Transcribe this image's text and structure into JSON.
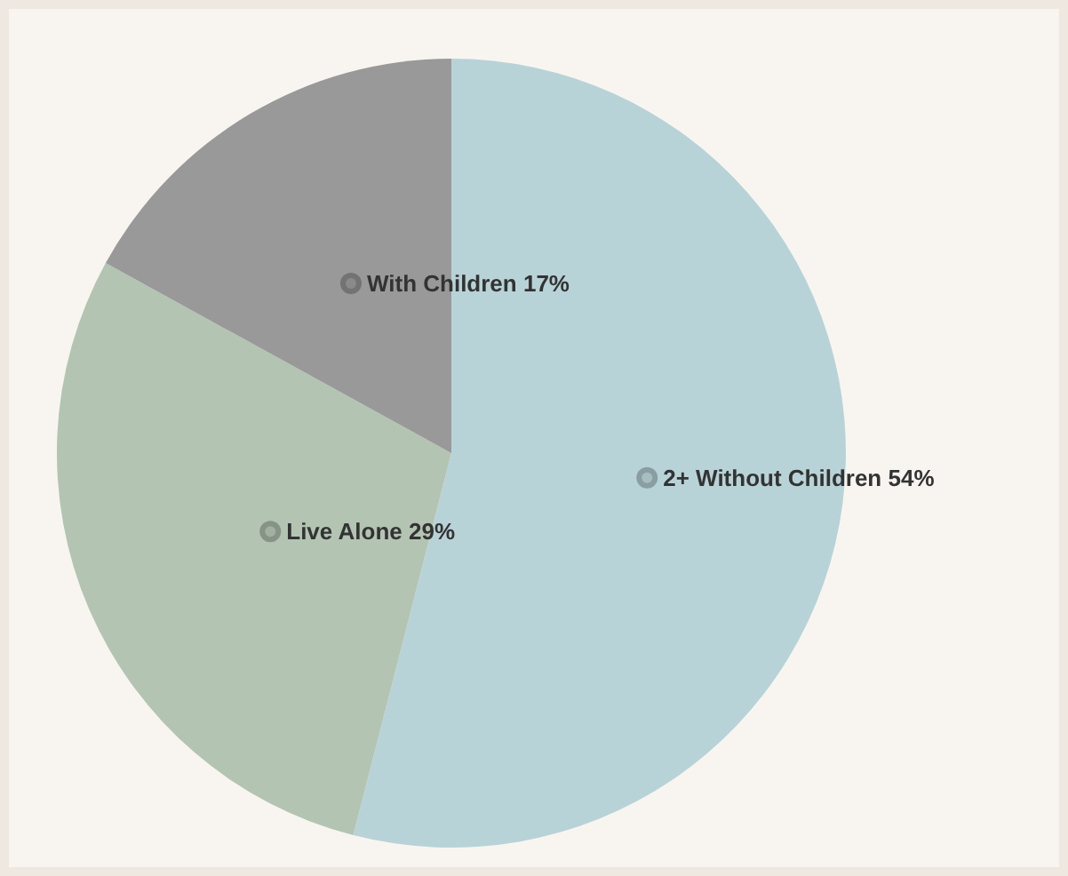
{
  "chart_data": {
    "type": "pie",
    "categories": [
      "2+ Without Children",
      "Live Alone",
      "With Children"
    ],
    "values": [
      54,
      29,
      17
    ],
    "value_labels": [
      "54%",
      "29%",
      "17%"
    ],
    "colors": [
      "#b8d3d8",
      "#b3c4b3",
      "#999999"
    ]
  }
}
